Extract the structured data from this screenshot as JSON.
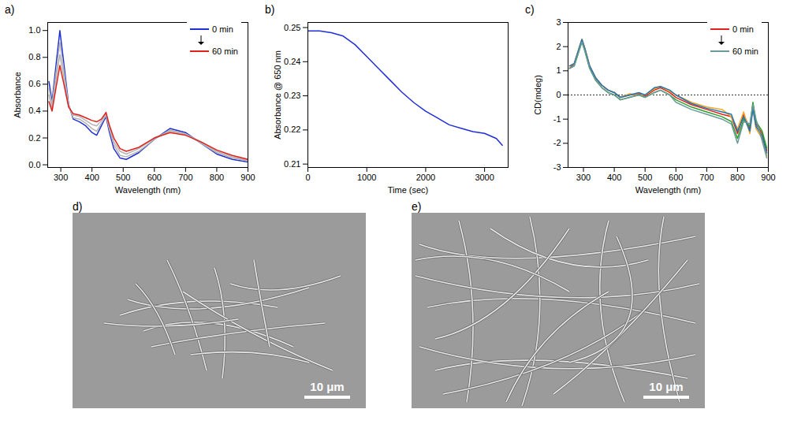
{
  "chart_data": [
    {
      "panel": "a)",
      "type": "line",
      "x_label": "Wavelength (nm)",
      "y_label": "Absorbance",
      "x": [
        262,
        272,
        285,
        297,
        310,
        325,
        340,
        360,
        380,
        400,
        415,
        430,
        445,
        455,
        470,
        490,
        510,
        550,
        600,
        650,
        700,
        750,
        800,
        850,
        900
      ],
      "series": [
        {
          "name": "0 min",
          "color": "#1f2fd6",
          "values": [
            0.62,
            0.47,
            0.75,
            1.0,
            0.75,
            0.45,
            0.34,
            0.32,
            0.29,
            0.24,
            0.22,
            0.29,
            0.36,
            0.25,
            0.12,
            0.05,
            0.04,
            0.09,
            0.19,
            0.27,
            0.24,
            0.16,
            0.08,
            0.04,
            0.02
          ]
        },
        {
          "color": "#b4b4b4",
          "values": [
            0.57,
            0.45,
            0.69,
            0.91,
            0.7,
            0.44,
            0.35,
            0.34,
            0.31,
            0.27,
            0.25,
            0.31,
            0.37,
            0.27,
            0.15,
            0.07,
            0.06,
            0.1,
            0.19,
            0.26,
            0.23,
            0.16,
            0.09,
            0.05,
            0.03
          ]
        },
        {
          "color": "#b4b4b4",
          "values": [
            0.52,
            0.42,
            0.64,
            0.82,
            0.65,
            0.44,
            0.37,
            0.36,
            0.33,
            0.3,
            0.29,
            0.33,
            0.38,
            0.28,
            0.17,
            0.1,
            0.08,
            0.12,
            0.2,
            0.25,
            0.23,
            0.17,
            0.1,
            0.06,
            0.03
          ]
        },
        {
          "name": "60 min",
          "color": "#e0201b",
          "values": [
            0.47,
            0.4,
            0.58,
            0.74,
            0.6,
            0.43,
            0.38,
            0.37,
            0.35,
            0.33,
            0.32,
            0.34,
            0.39,
            0.3,
            0.2,
            0.12,
            0.1,
            0.13,
            0.2,
            0.24,
            0.22,
            0.17,
            0.11,
            0.07,
            0.04
          ]
        }
      ],
      "xlim": [
        258,
        900
      ],
      "ylim": [
        -0.02,
        1.06
      ],
      "xticks": [
        300,
        400,
        500,
        600,
        700,
        800,
        900
      ],
      "yticks": [
        {
          "value": 0,
          "label": "0.0"
        },
        0.2,
        0.4,
        0.6,
        0.8,
        {
          "value": 1,
          "label": "1.0"
        }
      ],
      "legend": "top-right"
    },
    {
      "panel": "b)",
      "type": "line",
      "x_label": "Time (sec)",
      "y_label": "Absorbance @ 650 nm",
      "x": [
        0,
        200,
        400,
        600,
        800,
        1000,
        1200,
        1400,
        1600,
        1800,
        2000,
        2200,
        2400,
        2600,
        2800,
        3000,
        3200,
        3300
      ],
      "series": [
        {
          "color": "#1f2fd6",
          "values": [
            0.249,
            0.249,
            0.2485,
            0.2475,
            0.245,
            0.2415,
            0.238,
            0.2345,
            0.231,
            0.228,
            0.2255,
            0.2235,
            0.2215,
            0.2205,
            0.2195,
            0.219,
            0.2175,
            0.2155
          ]
        }
      ],
      "xlim": [
        0,
        3400
      ],
      "ylim": [
        0.209,
        0.2515
      ],
      "xticks": [
        0,
        1000,
        2000,
        3000
      ],
      "yticks": [
        0.21,
        0.22,
        0.23,
        0.24,
        0.25
      ]
    },
    {
      "panel": "c)",
      "type": "line",
      "x_label": "Wavelength (nm)",
      "y_label": "CD(mdeg)",
      "x": [
        255,
        270,
        285,
        295,
        305,
        320,
        340,
        360,
        380,
        400,
        420,
        450,
        480,
        500,
        530,
        550,
        580,
        600,
        650,
        700,
        750,
        780,
        800,
        820,
        840,
        850,
        860,
        880,
        895
      ],
      "series": [
        {
          "name": "0 min",
          "color": "#e0201b",
          "values": [
            1.1,
            1.3,
            1.9,
            2.3,
            1.9,
            1.2,
            0.7,
            0.4,
            0.2,
            0.1,
            -0.1,
            0.0,
            0.05,
            -0.05,
            0.2,
            0.3,
            0.1,
            -0.1,
            -0.4,
            -0.6,
            -0.8,
            -0.9,
            -1.6,
            -0.8,
            -1.4,
            -0.4,
            -1.2,
            -1.6,
            -2.3
          ]
        },
        {
          "color": "#f5a623",
          "values": [
            1.2,
            1.3,
            1.9,
            2.3,
            1.9,
            1.2,
            0.6,
            0.4,
            0.2,
            0.1,
            -0.1,
            0.05,
            0.0,
            0.0,
            0.25,
            0.35,
            0.15,
            0.0,
            -0.3,
            -0.5,
            -0.6,
            -0.9,
            -1.4,
            -0.7,
            -1.6,
            -0.5,
            -1.4,
            -1.8,
            -2.5
          ]
        },
        {
          "color": "#2ca02c",
          "values": [
            1.1,
            1.2,
            1.8,
            2.2,
            1.8,
            1.1,
            0.6,
            0.3,
            0.1,
            0.0,
            -0.2,
            -0.1,
            0.0,
            -0.1,
            0.1,
            0.2,
            0.0,
            -0.2,
            -0.5,
            -0.7,
            -0.9,
            -1.1,
            -1.8,
            -1.0,
            -1.3,
            -0.3,
            -1.1,
            -1.5,
            -2.2
          ]
        },
        {
          "color": "#1f77b4",
          "values": [
            1.2,
            1.3,
            1.9,
            2.3,
            1.9,
            1.2,
            0.7,
            0.4,
            0.2,
            0.1,
            -0.1,
            0.0,
            0.1,
            0.0,
            0.3,
            0.35,
            0.2,
            0.0,
            -0.35,
            -0.55,
            -0.7,
            -0.8,
            -1.5,
            -0.9,
            -1.5,
            -0.6,
            -1.3,
            -1.7,
            -2.4
          ]
        },
        {
          "name": "60 min",
          "color": "#6a9a9a",
          "values": [
            1.1,
            1.2,
            1.8,
            2.2,
            1.8,
            1.1,
            0.6,
            0.3,
            0.1,
            0.0,
            -0.2,
            -0.1,
            0.0,
            -0.1,
            0.1,
            0.2,
            0.0,
            -0.3,
            -0.6,
            -0.8,
            -1.0,
            -1.2,
            -2.0,
            -1.1,
            -1.2,
            -0.4,
            -1.0,
            -1.9,
            -2.6
          ]
        }
      ],
      "baseline": 0,
      "xlim": [
        250,
        900
      ],
      "ylim": [
        -3,
        3
      ],
      "xticks": [
        300,
        400,
        500,
        600,
        700,
        800,
        900
      ],
      "yticks": [
        -3,
        -2,
        -1,
        0,
        1,
        2,
        3
      ],
      "legend": "top-right"
    }
  ],
  "images": [
    {
      "panel": "d)",
      "scale_bar": "10 μm"
    },
    {
      "panel": "e)",
      "scale_bar": "10 μm"
    }
  ]
}
